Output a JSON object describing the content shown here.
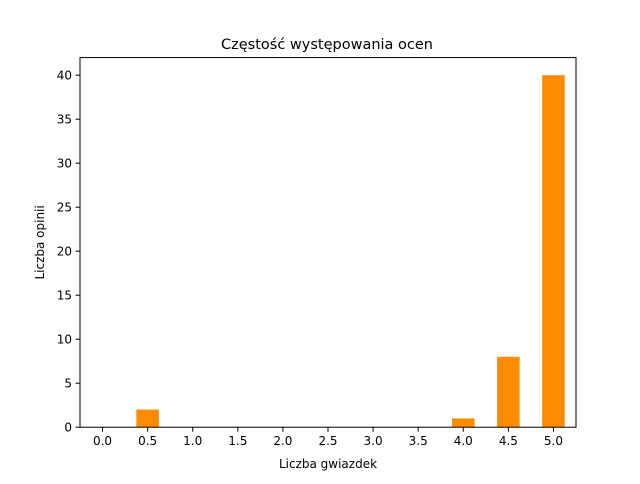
{
  "chart_data": {
    "type": "bar",
    "title": "Częstość występowania ocen",
    "xlabel": "Liczba gwiazdek",
    "ylabel": "Liczba opinii",
    "categories": [
      "0.0",
      "0.5",
      "1.0",
      "1.5",
      "2.0",
      "2.5",
      "3.0",
      "3.5",
      "4.0",
      "4.5",
      "5.0"
    ],
    "values": [
      0,
      2,
      0,
      0,
      0,
      0,
      0,
      0,
      1,
      8,
      40
    ],
    "yticks": [
      0,
      5,
      10,
      15,
      20,
      25,
      30,
      35,
      40
    ],
    "ylim": [
      0,
      42
    ],
    "bar_color": "#ff8c00",
    "grid": false,
    "legend": "none"
  }
}
